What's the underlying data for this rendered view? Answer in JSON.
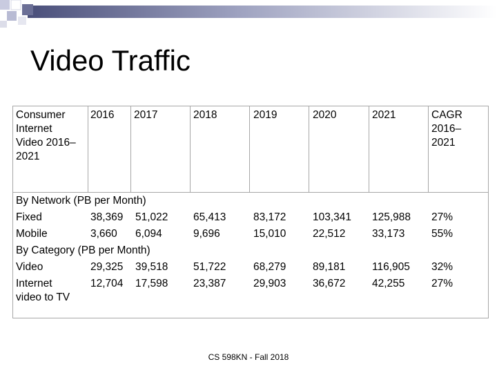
{
  "slide": {
    "title": "Video Traffic",
    "footer": "CS 598KN - Fall 2018"
  },
  "table": {
    "header": [
      "Consumer\nInternet\nVideo 2016–\n2021",
      "2016",
      "2017",
      "2018",
      "2019",
      "2020",
      "2021",
      "CAGR\n2016–\n2021"
    ],
    "section_network": "By Network (PB per Month)",
    "section_category": "By Category (PB per Month)",
    "rows": {
      "fixed": [
        "Fixed",
        "38,369",
        "51,022",
        "65,413",
        "83,172",
        "103,341",
        "125,988",
        "27%"
      ],
      "mobile": [
        "Mobile",
        "3,660",
        "6,094",
        "9,696",
        "15,010",
        "22,512",
        "33,173",
        "55%"
      ],
      "video": [
        "Video",
        "29,325",
        "39,518",
        "51,722",
        "68,279",
        "89,181",
        "116,905",
        "32%"
      ],
      "internet_tv": [
        "Internet\nvideo to TV",
        "12,704",
        "17,598",
        "23,387",
        "29,903",
        "36,672",
        "42,255",
        "27%"
      ]
    }
  },
  "colors": {
    "grid_line": "#a6a6a6",
    "decoration_gradient_start": "#4a4f7a",
    "decoration_gradient_end": "#ffffff"
  }
}
